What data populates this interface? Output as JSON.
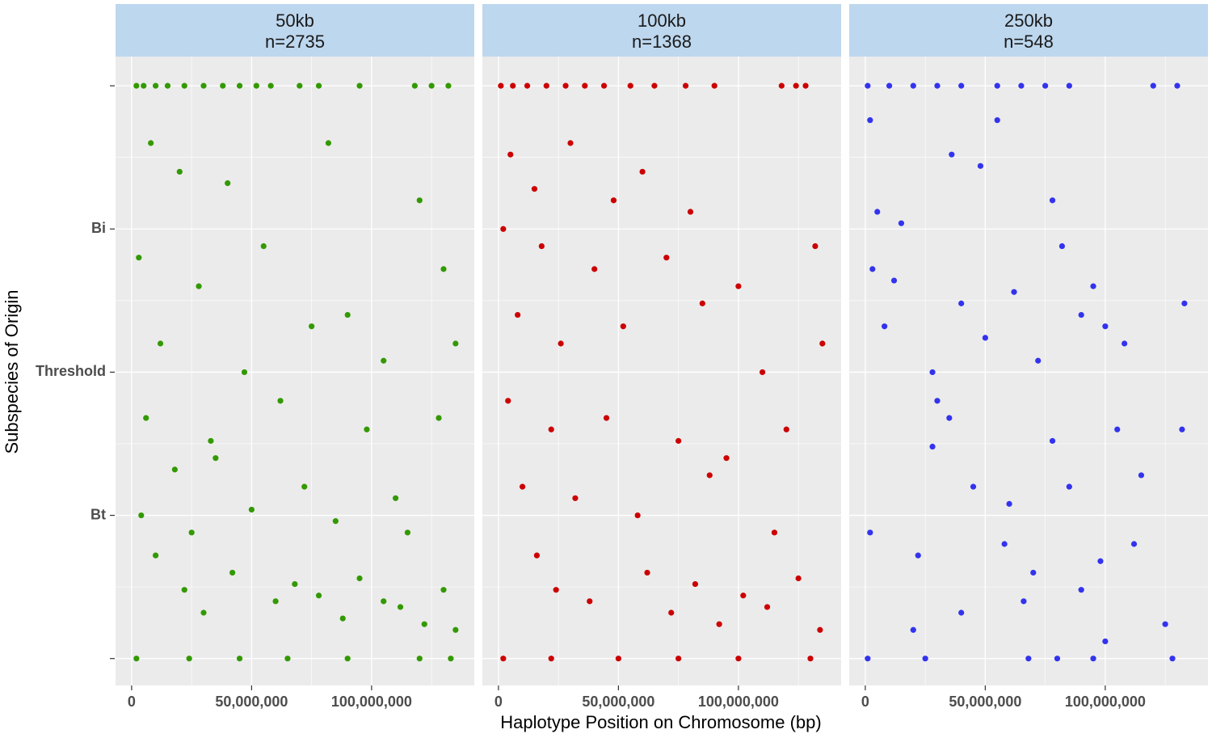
{
  "chart_data": {
    "type": "scatter",
    "xlabel": "Haplotype Position on Chromosome (bp)",
    "ylabel": "Subspecies of Origin",
    "xlim": [
      -6700000,
      142800000
    ],
    "ylim": [
      -0.047,
      1.051
    ],
    "xticks": [
      0,
      {
        "value": 50000000,
        "label": "50,000,000"
      },
      {
        "value": 100000000,
        "label": "100,000,000"
      }
    ],
    "yticks": [
      {
        "value": 0,
        "label": null
      },
      {
        "value": 0.25,
        "label": "Bt"
      },
      {
        "value": 0.5,
        "label": "Threshold"
      },
      {
        "value": 0.75,
        "label": "Bi"
      },
      {
        "value": 1,
        "label": null
      }
    ],
    "grid": true,
    "panels": [
      {
        "title": "50kb",
        "subtitle": "n=2735",
        "color": "#339900",
        "x": [
          2000000,
          5000000,
          10000000,
          15000000,
          22000000,
          30000000,
          38000000,
          45000000,
          52000000,
          58000000,
          70000000,
          78000000,
          95000000,
          118000000,
          125000000,
          132000000,
          8000000,
          20000000,
          40000000,
          82000000,
          120000000,
          3000000,
          28000000,
          55000000,
          90000000,
          130000000,
          12000000,
          47000000,
          75000000,
          105000000,
          135000000,
          6000000,
          33000000,
          62000000,
          98000000,
          128000000,
          18000000,
          35000000,
          72000000,
          110000000,
          4000000,
          25000000,
          50000000,
          85000000,
          115000000,
          10000000,
          22000000,
          30000000,
          42000000,
          60000000,
          68000000,
          78000000,
          88000000,
          95000000,
          105000000,
          112000000,
          122000000,
          130000000,
          135000000,
          2000000,
          24000000,
          45000000,
          65000000,
          90000000,
          120000000,
          133000000
        ],
        "y": [
          1,
          1,
          1,
          1,
          1,
          1,
          1,
          1,
          1,
          1,
          1,
          1,
          1,
          1,
          1,
          1,
          0.9,
          0.85,
          0.83,
          0.9,
          0.8,
          0.7,
          0.65,
          0.72,
          0.6,
          0.68,
          0.55,
          0.5,
          0.58,
          0.52,
          0.55,
          0.42,
          0.38,
          0.45,
          0.4,
          0.42,
          0.33,
          0.35,
          0.3,
          0.28,
          0.25,
          0.22,
          0.26,
          0.24,
          0.22,
          0.18,
          0.12,
          0.08,
          0.15,
          0.1,
          0.13,
          0.11,
          0.07,
          0.14,
          0.1,
          0.09,
          0.06,
          0.12,
          0.05,
          0,
          0,
          0,
          0,
          0,
          0,
          0
        ]
      },
      {
        "title": "100kb",
        "subtitle": "n=1368",
        "color": "#cc0000",
        "x": [
          1000000,
          6000000,
          12000000,
          20000000,
          28000000,
          36000000,
          44000000,
          55000000,
          65000000,
          78000000,
          90000000,
          118000000,
          124000000,
          128000000,
          5000000,
          15000000,
          30000000,
          48000000,
          60000000,
          80000000,
          2000000,
          18000000,
          40000000,
          70000000,
          100000000,
          132000000,
          8000000,
          26000000,
          52000000,
          85000000,
          110000000,
          135000000,
          4000000,
          22000000,
          45000000,
          75000000,
          95000000,
          120000000,
          10000000,
          32000000,
          58000000,
          88000000,
          115000000,
          16000000,
          24000000,
          38000000,
          62000000,
          72000000,
          82000000,
          92000000,
          102000000,
          112000000,
          125000000,
          134000000,
          2000000,
          22000000,
          50000000,
          75000000,
          100000000,
          130000000
        ],
        "y": [
          1,
          1,
          1,
          1,
          1,
          1,
          1,
          1,
          1,
          1,
          1,
          1,
          1,
          1,
          0.88,
          0.82,
          0.9,
          0.8,
          0.85,
          0.78,
          0.75,
          0.72,
          0.68,
          0.7,
          0.65,
          0.72,
          0.6,
          0.55,
          0.58,
          0.62,
          0.5,
          0.55,
          0.45,
          0.4,
          0.42,
          0.38,
          0.35,
          0.4,
          0.3,
          0.28,
          0.25,
          0.32,
          0.22,
          0.18,
          0.12,
          0.1,
          0.15,
          0.08,
          0.13,
          0.06,
          0.11,
          0.09,
          0.14,
          0.05,
          0,
          0,
          0,
          0,
          0,
          0
        ]
      },
      {
        "title": "250kb",
        "subtitle": "n=548",
        "color": "#3333ee",
        "x": [
          1000000,
          10000000,
          20000000,
          30000000,
          40000000,
          55000000,
          65000000,
          75000000,
          85000000,
          120000000,
          130000000,
          2000000,
          36000000,
          55000000,
          48000000,
          5000000,
          15000000,
          78000000,
          82000000,
          3000000,
          12000000,
          40000000,
          62000000,
          90000000,
          95000000,
          108000000,
          133000000,
          8000000,
          28000000,
          50000000,
          72000000,
          100000000,
          30000000,
          35000000,
          78000000,
          105000000,
          132000000,
          28000000,
          45000000,
          60000000,
          85000000,
          115000000,
          2000000,
          22000000,
          58000000,
          70000000,
          98000000,
          112000000,
          20000000,
          40000000,
          66000000,
          90000000,
          100000000,
          125000000,
          1000000,
          25000000,
          68000000,
          80000000,
          95000000,
          128000000
        ],
        "y": [
          1,
          1,
          1,
          1,
          1,
          1,
          1,
          1,
          1,
          1,
          1,
          0.94,
          0.88,
          0.94,
          0.86,
          0.78,
          0.76,
          0.8,
          0.72,
          0.68,
          0.66,
          0.62,
          0.64,
          0.6,
          0.65,
          0.55,
          0.62,
          0.58,
          0.5,
          0.56,
          0.52,
          0.58,
          0.45,
          0.42,
          0.38,
          0.4,
          0.4,
          0.37,
          0.3,
          0.27,
          0.3,
          0.32,
          0.22,
          0.18,
          0.2,
          0.15,
          0.17,
          0.2,
          0.05,
          0.08,
          0.1,
          0.12,
          0.03,
          0.06,
          0,
          0,
          0,
          0,
          0,
          0
        ]
      }
    ]
  }
}
